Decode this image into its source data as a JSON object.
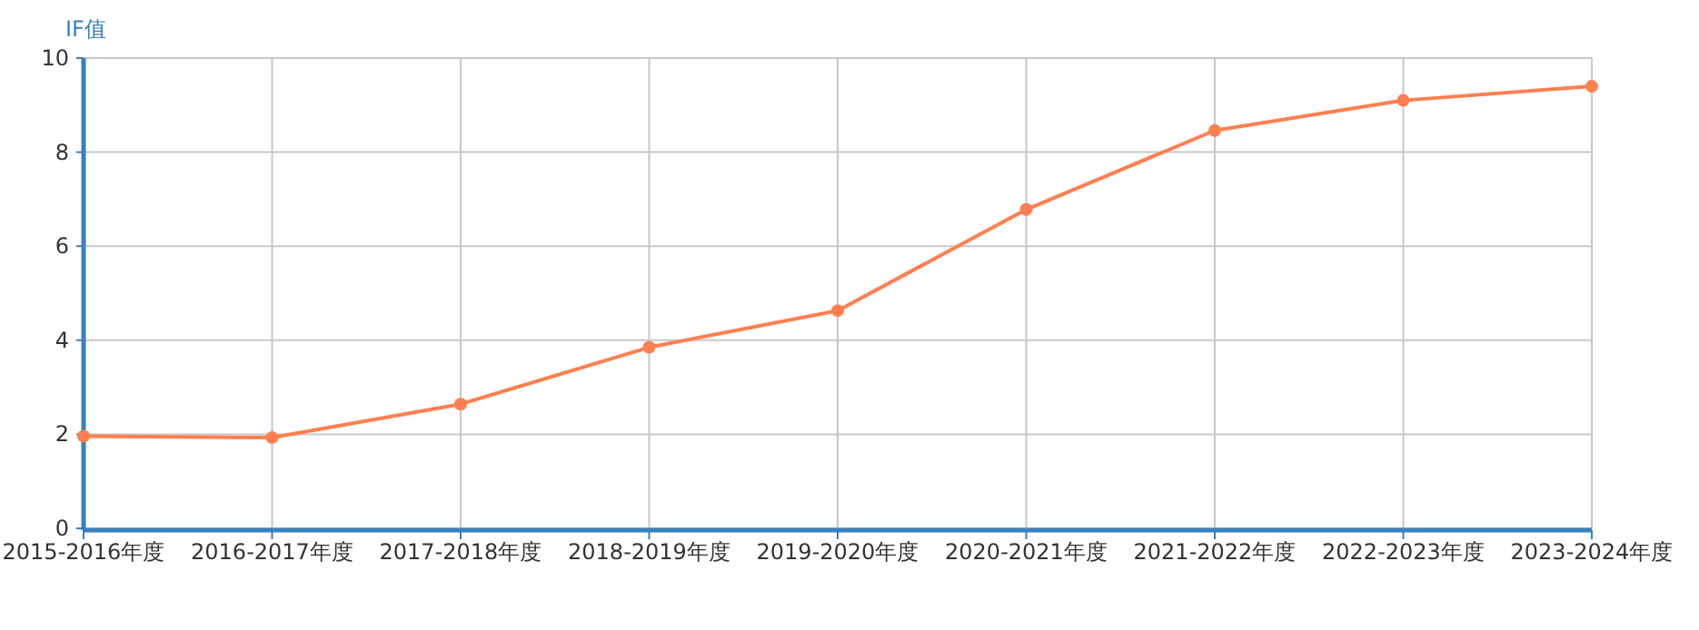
{
  "chart_data": {
    "type": "line",
    "ylabel": "IF值",
    "categories": [
      "2015-2016年度",
      "2016-2017年度",
      "2017-2018年度",
      "2018-2019年度",
      "2019-2020年度",
      "2020-2021年度",
      "2021-2022年度",
      "2022-2023年度",
      "2023-2024年度"
    ],
    "series": [
      {
        "color": "#ff7f50",
        "values": [
          1.96,
          1.93,
          2.64,
          3.85,
          4.63,
          6.78,
          8.46,
          9.1,
          9.4
        ]
      }
    ],
    "ylim": [
      0,
      10
    ],
    "yticks": [
      0,
      2,
      4,
      6,
      8,
      10
    ],
    "grid": true,
    "marker": "circle",
    "line_style": "solid"
  }
}
